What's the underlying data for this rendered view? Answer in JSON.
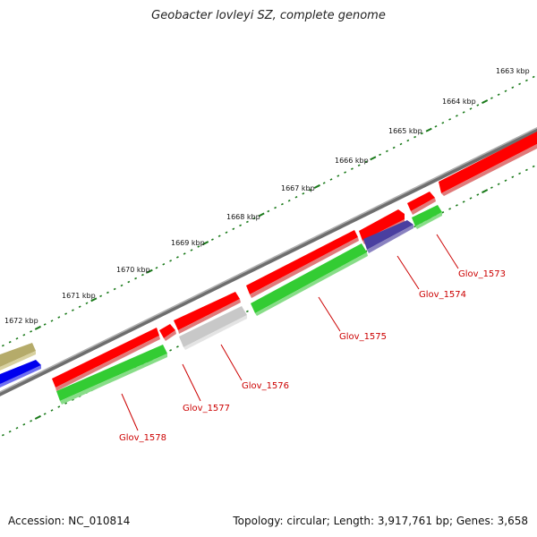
{
  "title": "Geobacter lovleyi SZ, complete genome",
  "footer": {
    "accession": "Accession: NC_010814",
    "summary": "Topology: circular; Length: 3,917,761 bp; Genes: 3,658"
  },
  "scale_labels": [
    "1663 kbp",
    "1664 kbp",
    "1665 kbp",
    "1666 kbp",
    "1667 kbp",
    "1668 kbp",
    "1669 kbp",
    "1670 kbp",
    "1671 kbp",
    "1672 kbp"
  ],
  "gene_labels": [
    "Glov_1573",
    "Glov_1574",
    "Glov_1575",
    "Glov_1576",
    "Glov_1577",
    "Glov_1578"
  ],
  "colors": {
    "backbone": "#808080",
    "tick": "#1a7a1a",
    "forward_gene": "#ff0000",
    "reverse_gene": "#33cc33",
    "highlight_gene": "#4a3fa0",
    "grey_gene": "#c8c8c8",
    "olive_gene": "#b5ab6a",
    "blue_gene": "#0000ee",
    "label": "#cc0000"
  }
}
